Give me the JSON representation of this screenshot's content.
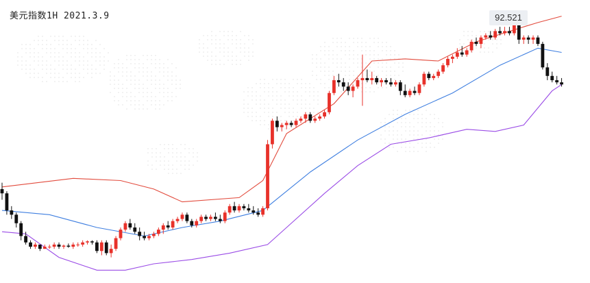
{
  "chart_data": {
    "type": "candlestick",
    "title": "美元指数1H 2021.3.9",
    "peak_label": "92.521",
    "colors": {
      "up": "#e8312a",
      "down": "#111111",
      "upper_band": "#e24a3c",
      "middle_band": "#3f7fe0",
      "lower_band": "#9a4be6"
    },
    "ohlc": [
      [
        91.74,
        91.77,
        91.69,
        91.72
      ],
      [
        91.72,
        91.73,
        91.62,
        91.64
      ],
      [
        91.64,
        91.66,
        91.6,
        91.62
      ],
      [
        91.62,
        91.63,
        91.56,
        91.58
      ],
      [
        91.58,
        91.59,
        91.5,
        91.52
      ],
      [
        91.52,
        91.54,
        91.48,
        91.49
      ],
      [
        91.49,
        91.5,
        91.46,
        91.47
      ],
      [
        91.47,
        91.49,
        91.46,
        91.48
      ],
      [
        91.48,
        91.48,
        91.45,
        91.46
      ],
      [
        91.46,
        91.48,
        91.46,
        91.47
      ],
      [
        91.47,
        91.48,
        91.46,
        91.47
      ],
      [
        91.47,
        91.49,
        91.46,
        91.48
      ],
      [
        91.48,
        91.49,
        91.46,
        91.47
      ],
      [
        91.47,
        91.48,
        91.46,
        91.475
      ],
      [
        91.475,
        91.485,
        91.465,
        91.47
      ],
      [
        91.47,
        91.49,
        91.46,
        91.48
      ],
      [
        91.48,
        91.49,
        91.47,
        91.48
      ],
      [
        91.48,
        91.5,
        91.47,
        91.49
      ],
      [
        91.49,
        91.5,
        91.48,
        91.495
      ],
      [
        91.495,
        91.5,
        91.48,
        91.49
      ],
      [
        91.49,
        91.5,
        91.44,
        91.45
      ],
      [
        91.45,
        91.5,
        91.43,
        91.49
      ],
      [
        91.49,
        91.5,
        91.43,
        91.44
      ],
      [
        91.44,
        91.48,
        91.42,
        91.46
      ],
      [
        91.46,
        91.52,
        91.45,
        91.51
      ],
      [
        91.51,
        91.56,
        91.5,
        91.55
      ],
      [
        91.55,
        91.59,
        91.54,
        91.58
      ],
      [
        91.58,
        91.6,
        91.55,
        91.56
      ],
      [
        91.56,
        91.58,
        91.53,
        91.54
      ],
      [
        91.54,
        91.56,
        91.5,
        91.52
      ],
      [
        91.52,
        91.54,
        91.5,
        91.51
      ],
      [
        91.51,
        91.53,
        91.5,
        91.52
      ],
      [
        91.52,
        91.54,
        91.51,
        91.53
      ],
      [
        91.53,
        91.56,
        91.52,
        91.55
      ],
      [
        91.55,
        91.58,
        91.53,
        91.57
      ],
      [
        91.57,
        91.59,
        91.55,
        91.56
      ],
      [
        91.56,
        91.6,
        91.55,
        91.59
      ],
      [
        91.59,
        91.61,
        91.58,
        91.6
      ],
      [
        91.6,
        91.63,
        91.59,
        91.62
      ],
      [
        91.62,
        91.63,
        91.58,
        91.59
      ],
      [
        91.59,
        91.6,
        91.56,
        91.57
      ],
      [
        91.57,
        91.6,
        91.56,
        91.59
      ],
      [
        91.59,
        91.62,
        91.58,
        91.61
      ],
      [
        91.61,
        91.62,
        91.59,
        91.6
      ],
      [
        91.6,
        91.62,
        91.59,
        91.61
      ],
      [
        91.61,
        91.63,
        91.59,
        91.6
      ],
      [
        91.6,
        91.62,
        91.58,
        91.59
      ],
      [
        91.59,
        91.64,
        91.58,
        91.63
      ],
      [
        91.63,
        91.67,
        91.62,
        91.66
      ],
      [
        91.66,
        91.68,
        91.63,
        91.64
      ],
      [
        91.64,
        91.67,
        91.63,
        91.66
      ],
      [
        91.66,
        91.67,
        91.64,
        91.65
      ],
      [
        91.65,
        91.67,
        91.63,
        91.64
      ],
      [
        91.64,
        91.66,
        91.62,
        91.63
      ],
      [
        91.63,
        91.65,
        91.61,
        91.62
      ],
      [
        91.62,
        91.66,
        91.61,
        91.65
      ],
      [
        91.65,
        91.97,
        91.64,
        91.95
      ],
      [
        91.95,
        92.07,
        91.93,
        92.06
      ],
      [
        92.06,
        92.08,
        92.01,
        92.03
      ],
      [
        92.03,
        92.05,
        92.01,
        92.04
      ],
      [
        92.04,
        92.06,
        92.02,
        92.05
      ],
      [
        92.05,
        92.06,
        92.03,
        92.04
      ],
      [
        92.04,
        92.07,
        92.03,
        92.06
      ],
      [
        92.06,
        92.08,
        92.05,
        92.07
      ],
      [
        92.07,
        92.1,
        92.05,
        92.09
      ],
      [
        92.09,
        92.1,
        92.05,
        92.06
      ],
      [
        92.06,
        92.08,
        92.05,
        92.07
      ],
      [
        92.07,
        92.09,
        92.06,
        92.08
      ],
      [
        92.08,
        92.11,
        92.07,
        92.1
      ],
      [
        92.1,
        92.2,
        92.09,
        92.19
      ],
      [
        92.19,
        92.27,
        92.18,
        92.25
      ],
      [
        92.25,
        92.28,
        92.22,
        92.24
      ],
      [
        92.24,
        92.26,
        92.2,
        92.22
      ],
      [
        92.22,
        92.24,
        92.18,
        92.2
      ],
      [
        92.2,
        92.23,
        92.17,
        92.22
      ],
      [
        92.22,
        92.26,
        92.21,
        92.25
      ],
      [
        92.25,
        92.37,
        92.13,
        92.26
      ],
      [
        92.26,
        92.3,
        92.24,
        92.25
      ],
      [
        92.25,
        92.29,
        92.23,
        92.26
      ],
      [
        92.26,
        92.27,
        92.23,
        92.24
      ],
      [
        92.24,
        92.26,
        92.22,
        92.25
      ],
      [
        92.25,
        92.26,
        92.23,
        92.24
      ],
      [
        92.24,
        92.26,
        92.22,
        92.23
      ],
      [
        92.23,
        92.25,
        92.22,
        92.24
      ],
      [
        92.24,
        92.25,
        92.18,
        92.2
      ],
      [
        92.2,
        92.23,
        92.17,
        92.18
      ],
      [
        92.18,
        92.21,
        92.17,
        92.2
      ],
      [
        92.2,
        92.22,
        92.18,
        92.19
      ],
      [
        92.19,
        92.24,
        92.18,
        92.23
      ],
      [
        92.23,
        92.29,
        92.22,
        92.28
      ],
      [
        92.28,
        92.29,
        92.25,
        92.26
      ],
      [
        92.26,
        92.28,
        92.25,
        92.27
      ],
      [
        92.27,
        92.3,
        92.26,
        92.29
      ],
      [
        92.29,
        92.33,
        92.28,
        92.32
      ],
      [
        92.32,
        92.36,
        92.31,
        92.35
      ],
      [
        92.35,
        92.37,
        92.33,
        92.36
      ],
      [
        92.36,
        92.4,
        92.35,
        92.38
      ],
      [
        92.38,
        92.41,
        92.36,
        92.37
      ],
      [
        92.37,
        92.4,
        92.36,
        92.39
      ],
      [
        92.39,
        92.44,
        92.38,
        92.43
      ],
      [
        92.43,
        92.45,
        92.41,
        92.42
      ],
      [
        92.42,
        92.46,
        92.4,
        92.45
      ],
      [
        92.45,
        92.47,
        92.44,
        92.46
      ],
      [
        92.46,
        92.48,
        92.44,
        92.45
      ],
      [
        92.45,
        92.49,
        92.44,
        92.48
      ],
      [
        92.48,
        92.5,
        92.46,
        92.47
      ],
      [
        92.47,
        92.5,
        92.46,
        92.48
      ],
      [
        92.48,
        92.5,
        92.46,
        92.47
      ],
      [
        92.47,
        92.521,
        92.46,
        92.51
      ],
      [
        92.51,
        92.521,
        92.42,
        92.44
      ],
      [
        92.44,
        92.46,
        92.42,
        92.45
      ],
      [
        92.45,
        92.46,
        92.42,
        92.44
      ],
      [
        92.44,
        92.46,
        92.42,
        92.45
      ],
      [
        92.45,
        92.46,
        92.41,
        92.42
      ],
      [
        92.42,
        92.43,
        92.3,
        92.31
      ],
      [
        92.31,
        92.33,
        92.25,
        92.27
      ],
      [
        92.27,
        92.29,
        92.24,
        92.25
      ],
      [
        92.25,
        92.27,
        92.23,
        92.24
      ],
      [
        92.24,
        92.26,
        92.22,
        92.23
      ]
    ],
    "upper_band": [
      [
        0,
        91.75
      ],
      [
        15,
        91.79
      ],
      [
        25,
        91.78
      ],
      [
        32,
        91.74
      ],
      [
        38,
        91.68
      ],
      [
        50,
        91.7
      ],
      [
        55,
        91.78
      ],
      [
        60,
        92.0
      ],
      [
        70,
        92.14
      ],
      [
        78,
        92.34
      ],
      [
        85,
        92.35
      ],
      [
        92,
        92.34
      ],
      [
        100,
        92.43
      ],
      [
        110,
        92.5
      ],
      [
        113,
        92.52
      ],
      [
        118,
        92.55
      ]
    ],
    "middle_band": [
      [
        0,
        91.64
      ],
      [
        10,
        91.62
      ],
      [
        20,
        91.56
      ],
      [
        30,
        91.52
      ],
      [
        38,
        91.56
      ],
      [
        46,
        91.59
      ],
      [
        55,
        91.64
      ],
      [
        65,
        91.82
      ],
      [
        75,
        91.97
      ],
      [
        85,
        92.09
      ],
      [
        95,
        92.19
      ],
      [
        105,
        92.32
      ],
      [
        113,
        92.4
      ],
      [
        118,
        92.38
      ]
    ],
    "lower_band": [
      [
        0,
        91.54
      ],
      [
        5,
        91.53
      ],
      [
        12,
        91.42
      ],
      [
        20,
        91.36
      ],
      [
        26,
        91.36
      ],
      [
        32,
        91.39
      ],
      [
        40,
        91.41
      ],
      [
        48,
        91.44
      ],
      [
        56,
        91.48
      ],
      [
        60,
        91.56
      ],
      [
        68,
        91.72
      ],
      [
        75,
        91.85
      ],
      [
        82,
        91.95
      ],
      [
        90,
        91.98
      ],
      [
        98,
        92.02
      ],
      [
        104,
        92.01
      ],
      [
        110,
        92.04
      ],
      [
        113,
        92.12
      ],
      [
        116,
        92.2
      ],
      [
        118,
        92.23
      ]
    ]
  }
}
